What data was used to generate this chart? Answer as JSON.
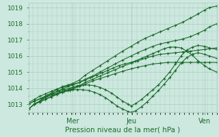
{
  "xlabel": "Pression niveau de la mer( hPa )",
  "bg_color": "#cce8df",
  "grid_color": "#aaccbc",
  "line_color": "#1a6b2a",
  "ylim": [
    1012.5,
    1019.3
  ],
  "xlim": [
    0,
    1
  ],
  "day_labels": [
    "Mer",
    "Jeu",
    "Ven"
  ],
  "day_positions": [
    0.235,
    0.545,
    0.935
  ],
  "series": [
    {
      "x": [
        0.0,
        0.03,
        0.06,
        0.09,
        0.12,
        0.15,
        0.18,
        0.21,
        0.235,
        0.27,
        0.3,
        0.34,
        0.38,
        0.42,
        0.46,
        0.5,
        0.545,
        0.58,
        0.62,
        0.66,
        0.7,
        0.74,
        0.78,
        0.82,
        0.86,
        0.9,
        0.935,
        0.96,
        1.0
      ],
      "y": [
        1012.7,
        1013.0,
        1013.2,
        1013.5,
        1013.7,
        1013.9,
        1014.1,
        1014.2,
        1014.3,
        1014.5,
        1014.8,
        1015.1,
        1015.4,
        1015.7,
        1016.0,
        1016.3,
        1016.6,
        1016.85,
        1017.1,
        1017.3,
        1017.5,
        1017.7,
        1017.9,
        1018.1,
        1018.35,
        1018.6,
        1018.85,
        1019.0,
        1019.1
      ]
    },
    {
      "x": [
        0.0,
        0.03,
        0.06,
        0.09,
        0.12,
        0.15,
        0.18,
        0.21,
        0.235,
        0.27,
        0.3,
        0.34,
        0.38,
        0.42,
        0.46,
        0.5,
        0.545,
        0.58,
        0.62,
        0.66,
        0.7,
        0.74,
        0.78,
        0.82,
        0.86,
        0.9,
        0.935,
        0.96,
        1.0
      ],
      "y": [
        1012.7,
        1013.0,
        1013.2,
        1013.4,
        1013.6,
        1013.8,
        1013.95,
        1014.1,
        1014.2,
        1014.35,
        1014.55,
        1014.75,
        1015.0,
        1015.25,
        1015.5,
        1015.75,
        1016.0,
        1016.2,
        1016.4,
        1016.6,
        1016.75,
        1016.85,
        1016.95,
        1017.05,
        1017.2,
        1017.4,
        1017.6,
        1017.8,
        1018.0
      ]
    },
    {
      "x": [
        0.0,
        0.03,
        0.06,
        0.09,
        0.12,
        0.15,
        0.18,
        0.21,
        0.235,
        0.27,
        0.3,
        0.34,
        0.38,
        0.42,
        0.46,
        0.5,
        0.545,
        0.58,
        0.62,
        0.66,
        0.7,
        0.74,
        0.78,
        0.82,
        0.86,
        0.9,
        0.935,
        0.96,
        1.0
      ],
      "y": [
        1012.7,
        1013.0,
        1013.15,
        1013.3,
        1013.5,
        1013.65,
        1013.8,
        1013.9,
        1014.0,
        1014.15,
        1014.35,
        1014.55,
        1014.75,
        1014.95,
        1015.15,
        1015.35,
        1015.55,
        1015.7,
        1015.85,
        1016.0,
        1016.1,
        1016.15,
        1016.2,
        1016.25,
        1016.3,
        1016.35,
        1016.4,
        1016.45,
        1016.5
      ]
    },
    {
      "x": [
        0.0,
        0.03,
        0.06,
        0.09,
        0.12,
        0.15,
        0.18,
        0.21,
        0.235,
        0.27,
        0.3,
        0.34,
        0.38,
        0.42,
        0.46,
        0.5,
        0.545,
        0.58,
        0.62,
        0.66,
        0.7,
        0.74,
        0.78,
        0.82,
        0.86,
        0.9,
        0.935,
        0.96,
        1.0
      ],
      "y": [
        1012.7,
        1013.0,
        1013.15,
        1013.3,
        1013.45,
        1013.6,
        1013.75,
        1013.85,
        1013.95,
        1014.1,
        1014.25,
        1014.45,
        1014.6,
        1014.75,
        1014.9,
        1015.05,
        1015.2,
        1015.3,
        1015.4,
        1015.5,
        1015.55,
        1015.6,
        1015.6,
        1015.6,
        1015.6,
        1015.6,
        1015.6,
        1015.6,
        1015.6
      ]
    },
    {
      "x": [
        0.0,
        0.03,
        0.06,
        0.09,
        0.12,
        0.15,
        0.18,
        0.21,
        0.235,
        0.27,
        0.3,
        0.33,
        0.36,
        0.39,
        0.42,
        0.45,
        0.48,
        0.51,
        0.545,
        0.57,
        0.6,
        0.63,
        0.66,
        0.69,
        0.72,
        0.75,
        0.78,
        0.81,
        0.84,
        0.87,
        0.9,
        0.935,
        0.96,
        1.0
      ],
      "y": [
        1013.1,
        1013.3,
        1013.5,
        1013.65,
        1013.8,
        1013.95,
        1014.05,
        1014.15,
        1014.25,
        1014.35,
        1014.5,
        1014.65,
        1014.8,
        1014.95,
        1015.1,
        1015.25,
        1015.4,
        1015.5,
        1015.6,
        1015.7,
        1015.85,
        1016.0,
        1016.15,
        1016.3,
        1016.45,
        1016.55,
        1016.55,
        1016.5,
        1016.3,
        1016.05,
        1015.7,
        1015.4,
        1015.2,
        1015.0
      ]
    },
    {
      "x": [
        0.0,
        0.03,
        0.07,
        0.1,
        0.13,
        0.16,
        0.19,
        0.22,
        0.235,
        0.26,
        0.29,
        0.32,
        0.35,
        0.38,
        0.41,
        0.44,
        0.47,
        0.5,
        0.53,
        0.545,
        0.57,
        0.6,
        0.63,
        0.66,
        0.69,
        0.72,
        0.75,
        0.78,
        0.81,
        0.84,
        0.87,
        0.9,
        0.935,
        0.96,
        1.0
      ],
      "y": [
        1013.0,
        1013.2,
        1013.4,
        1013.55,
        1013.7,
        1013.82,
        1013.92,
        1014.0,
        1014.08,
        1014.15,
        1014.2,
        1014.2,
        1014.15,
        1014.05,
        1013.9,
        1013.7,
        1013.45,
        1013.2,
        1013.0,
        1012.9,
        1013.05,
        1013.3,
        1013.6,
        1013.9,
        1014.2,
        1014.6,
        1015.0,
        1015.5,
        1016.0,
        1016.35,
        1016.55,
        1016.65,
        1016.6,
        1016.5,
        1016.4
      ]
    },
    {
      "x": [
        0.0,
        0.03,
        0.07,
        0.1,
        0.13,
        0.16,
        0.19,
        0.22,
        0.235,
        0.26,
        0.29,
        0.32,
        0.35,
        0.38,
        0.41,
        0.44,
        0.47,
        0.5,
        0.53,
        0.545,
        0.57,
        0.6,
        0.63,
        0.66,
        0.69,
        0.72,
        0.75,
        0.78,
        0.81,
        0.84,
        0.87,
        0.9,
        0.935,
        0.96,
        1.0
      ],
      "y": [
        1013.0,
        1013.2,
        1013.35,
        1013.5,
        1013.62,
        1013.72,
        1013.8,
        1013.85,
        1013.9,
        1013.92,
        1013.9,
        1013.85,
        1013.75,
        1013.6,
        1013.4,
        1013.15,
        1012.9,
        1012.7,
        1012.55,
        1012.5,
        1012.6,
        1012.85,
        1013.15,
        1013.5,
        1013.85,
        1014.25,
        1014.65,
        1015.1,
        1015.55,
        1015.9,
        1016.1,
        1016.2,
        1016.1,
        1016.0,
        1015.85
      ]
    }
  ]
}
